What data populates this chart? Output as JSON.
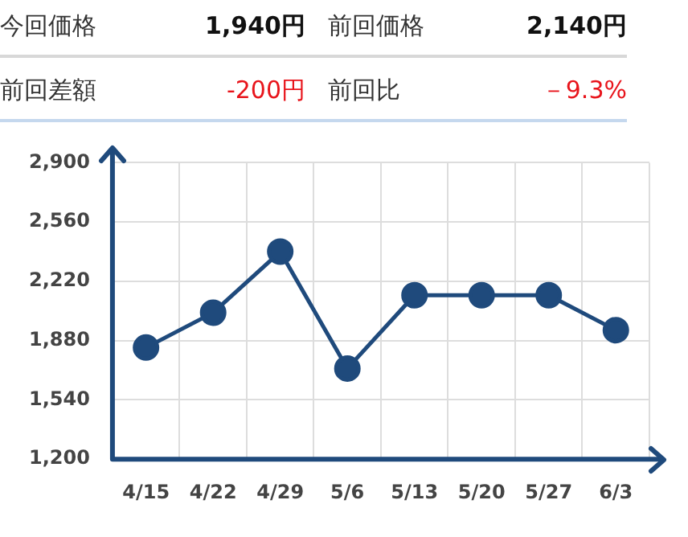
{
  "chart_data": [
    {
      "type": "other",
      "annotations": [
        "今回価格",
        "1,940円",
        "前回価格",
        "2,140円",
        "前回差額",
        "-200円",
        "前回比",
        "－9.3%"
      ]
    },
    {
      "type": "line",
      "categories": [
        "4/15",
        "4/22",
        "4/29",
        "5/6",
        "5/13",
        "5/20",
        "5/27",
        "6/3"
      ],
      "series": [
        {
          "color": "#1f4a7c",
          "values": [
            1840,
            2040,
            2390,
            1720,
            2140,
            2140,
            2140,
            1940
          ]
        }
      ],
      "ylim": [
        1200,
        2900
      ],
      "yticks": [
        {
          "value": 1200,
          "label": "1,200"
        },
        {
          "value": 1540,
          "label": "1,540"
        },
        {
          "value": 1880,
          "label": "1,880"
        },
        {
          "value": 2220,
          "label": "2,220"
        },
        {
          "value": 2560,
          "label": "2,560"
        },
        {
          "value": 2900,
          "label": "2,900"
        }
      ],
      "grid": true,
      "marker": "circle",
      "legend": false
    }
  ]
}
